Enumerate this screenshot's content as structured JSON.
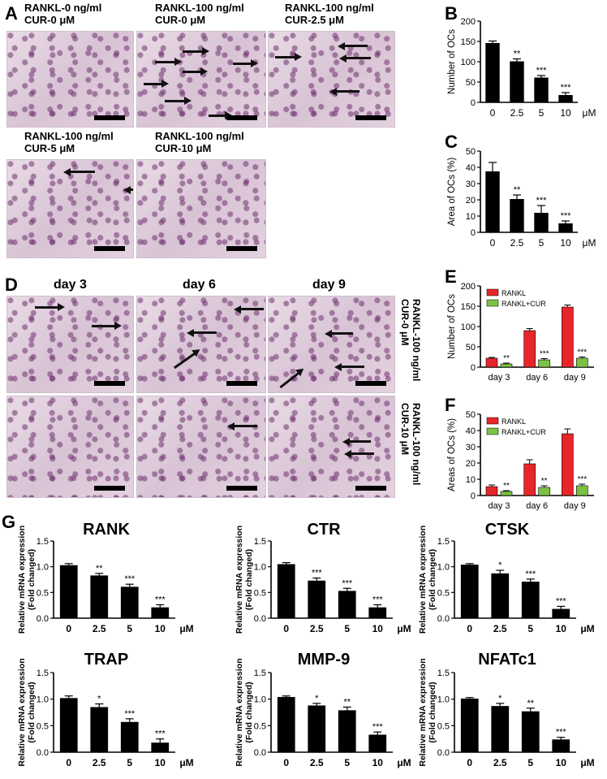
{
  "panels": {
    "A": {
      "letter": "A",
      "captions": [
        {
          "line1": "RANKL-0 ng/ml",
          "line2": "CUR-0 μM"
        },
        {
          "line1": "RANKL-100 ng/ml",
          "line2": "CUR-0 μM"
        },
        {
          "line1": "RANKL-100 ng/ml",
          "line2": "CUR-2.5 μM"
        },
        {
          "line1": "RANKL-100 ng/ml",
          "line2": "CUR-5 μM"
        },
        {
          "line1": "RANKL-100 ng/ml",
          "line2": "CUR-10 μM"
        }
      ]
    },
    "D": {
      "letter": "D",
      "day_labels": [
        "day 3",
        "day 6",
        "day 9"
      ],
      "row1_label": {
        "line1": "RANKL-100 ng/ml",
        "line2": "CUR-0 μM"
      },
      "row2_label": {
        "line1": "RANKL-100 ng/ml",
        "line2": "CUR-10 μM"
      }
    },
    "G": {
      "letter": "G"
    }
  },
  "chart_data": [
    {
      "id": "B",
      "letter": "B",
      "type": "bar",
      "ylabel": "Number of OCs",
      "categories": [
        "0",
        "2.5",
        "5",
        "10"
      ],
      "unit": "μM",
      "values": [
        146,
        101,
        61,
        18
      ],
      "errors": [
        5,
        6,
        5,
        6
      ],
      "sig": [
        "",
        "**",
        "***",
        "***"
      ],
      "ylim": [
        0,
        200
      ],
      "yticks": [
        0,
        50,
        100,
        150,
        200
      ]
    },
    {
      "id": "C",
      "letter": "C",
      "type": "bar",
      "ylabel": "Area of OCs (%)",
      "categories": [
        "0",
        "2.5",
        "5",
        "10"
      ],
      "unit": "μM",
      "values": [
        37.5,
        20.5,
        12,
        5.5
      ],
      "errors": [
        5.5,
        2.5,
        4.5,
        1.5
      ],
      "sig": [
        "",
        "**",
        "***",
        "***"
      ],
      "ylim": [
        0,
        50
      ],
      "yticks": [
        0,
        10,
        20,
        30,
        40,
        50
      ]
    },
    {
      "id": "E",
      "letter": "E",
      "type": "bar",
      "ylabel": "Number of OCs",
      "categories": [
        "day 3",
        "day 6",
        "day 9"
      ],
      "series": [
        {
          "name": "RANKL",
          "color": "#e8262a",
          "values": [
            22,
            90,
            148
          ],
          "errors": [
            2,
            5,
            5
          ],
          "sig": [
            "",
            "",
            ""
          ]
        },
        {
          "name": "RANKL+CUR",
          "color": "#7cc242",
          "values": [
            8,
            18,
            22
          ],
          "errors": [
            2,
            3,
            3
          ],
          "sig": [
            "**",
            "***",
            "***"
          ]
        }
      ],
      "ylim": [
        0,
        200
      ],
      "yticks": [
        0,
        50,
        100,
        150,
        200
      ]
    },
    {
      "id": "F",
      "letter": "F",
      "type": "bar",
      "ylabel": "Areas of OCs (%)",
      "categories": [
        "day 3",
        "day 6",
        "day 9"
      ],
      "series": [
        {
          "name": "RANKL",
          "color": "#e8262a",
          "values": [
            5.5,
            19.5,
            38
          ],
          "errors": [
            1,
            2.5,
            3
          ],
          "sig": [
            "",
            "",
            ""
          ]
        },
        {
          "name": "RANKL+CUR",
          "color": "#7cc242",
          "values": [
            2.5,
            5,
            6
          ],
          "errors": [
            0.5,
            1,
            1
          ],
          "sig": [
            "**",
            "**",
            "***"
          ]
        }
      ],
      "ylim": [
        0,
        50
      ],
      "yticks": [
        0,
        10,
        20,
        30,
        40,
        50
      ]
    },
    {
      "id": "G1",
      "type": "bar",
      "title": "RANK",
      "ylabel": "Relative mRNA expression",
      "ylabel2": "(Fold changed)",
      "categories": [
        "0",
        "2.5",
        "5",
        "10"
      ],
      "unit": "μM",
      "values": [
        1.03,
        0.83,
        0.61,
        0.21
      ],
      "errors": [
        0.03,
        0.04,
        0.05,
        0.05
      ],
      "sig": [
        "",
        "**",
        "***",
        "***"
      ],
      "ylim": [
        0,
        1.5
      ],
      "yticks": [
        "0.0",
        "0.5",
        "1.0",
        "1.5"
      ]
    },
    {
      "id": "G2",
      "type": "bar",
      "title": "CTR",
      "ylabel": "Relative mRNA expression",
      "ylabel2": "(Fold changed)",
      "categories": [
        "0",
        "2.5",
        "5",
        "10"
      ],
      "unit": "μM",
      "values": [
        1.05,
        0.73,
        0.53,
        0.21
      ],
      "errors": [
        0.03,
        0.05,
        0.05,
        0.05
      ],
      "sig": [
        "",
        "***",
        "***",
        "***"
      ],
      "ylim": [
        0,
        1.5
      ],
      "yticks": [
        "0.0",
        "0.5",
        "1.0",
        "1.5"
      ]
    },
    {
      "id": "G3",
      "type": "bar",
      "title": "CTSK",
      "ylabel": "Relative mRNA expression",
      "ylabel2": "(Fold changed)",
      "categories": [
        "0",
        "2.5",
        "5",
        "10"
      ],
      "unit": "μM",
      "values": [
        1.04,
        0.87,
        0.71,
        0.18
      ],
      "errors": [
        0.02,
        0.06,
        0.05,
        0.05
      ],
      "sig": [
        "",
        "*",
        "***",
        "***"
      ],
      "ylim": [
        0,
        1.5
      ],
      "yticks": [
        "0.0",
        "0.5",
        "1.0",
        "1.5"
      ]
    },
    {
      "id": "G4",
      "type": "bar",
      "title": "TRAP",
      "ylabel": "Relative mRNA expression",
      "ylabel2": "(Fold changed)",
      "categories": [
        "0",
        "2.5",
        "5",
        "10"
      ],
      "unit": "μM",
      "values": [
        1.02,
        0.85,
        0.57,
        0.18
      ],
      "errors": [
        0.04,
        0.06,
        0.06,
        0.07
      ],
      "sig": [
        "",
        "*",
        "***",
        "***"
      ],
      "ylim": [
        0,
        1.5
      ],
      "yticks": [
        "0.0",
        "0.5",
        "1.0",
        "1.5"
      ]
    },
    {
      "id": "G5",
      "type": "bar",
      "title": "MMP-9",
      "ylabel": "Relative mRNA expression",
      "ylabel2": "(Fold changed)",
      "categories": [
        "0",
        "2.5",
        "5",
        "10"
      ],
      "unit": "μM",
      "values": [
        1.04,
        0.88,
        0.79,
        0.33
      ],
      "errors": [
        0.02,
        0.04,
        0.06,
        0.05
      ],
      "sig": [
        "",
        "*",
        "**",
        "***"
      ],
      "ylim": [
        0,
        1.5
      ],
      "yticks": [
        "0.0",
        "0.5",
        "1.0",
        "1.5"
      ]
    },
    {
      "id": "G6",
      "type": "bar",
      "title": "NFATc1",
      "ylabel": "Relative mRNA expression",
      "ylabel2": "(Fold changed)",
      "categories": [
        "0",
        "2.5",
        "5",
        "10"
      ],
      "unit": "μM",
      "values": [
        1.01,
        0.87,
        0.77,
        0.24
      ],
      "errors": [
        0.02,
        0.05,
        0.06,
        0.04
      ],
      "sig": [
        "",
        "*",
        "**",
        "***"
      ],
      "ylim": [
        0,
        1.5
      ],
      "yticks": [
        "0.0",
        "0.5",
        "1.0",
        "1.5"
      ]
    }
  ]
}
